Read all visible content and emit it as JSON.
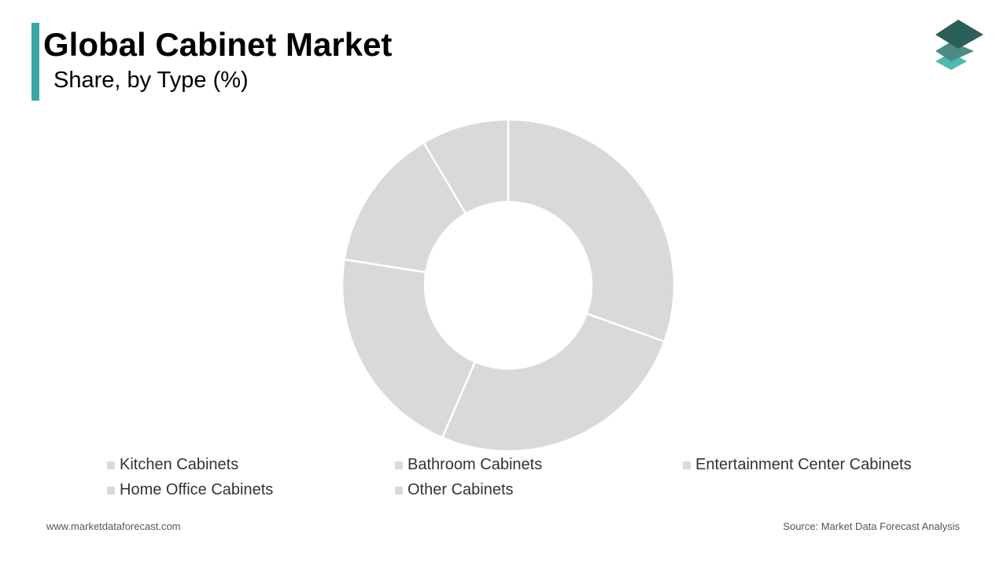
{
  "header": {
    "title": "Global Cabinet Market",
    "subtitle": "Share, by Type (%)"
  },
  "footer": {
    "website": "www.marketdataforecast.com",
    "source": "Source: Market Data Forecast Analysis"
  },
  "colors": {
    "accent": "#3aa8a5",
    "slice": "#d9d9d9",
    "separator": "#ffffff",
    "logo_top": "#2c5f5a",
    "logo_mid": "#4d8a83",
    "logo_bottom": "#4bbab1"
  },
  "icons": {
    "logo": "stacked-layers-icon"
  },
  "chart_data": {
    "type": "pie",
    "style": "donut",
    "categories": [
      "Kitchen Cabinets",
      "Bathroom Cabinets",
      "Entertainment Center Cabinets",
      "Home Office Cabinets",
      "Other Cabinets"
    ],
    "values": [
      30.5,
      26.0,
      21.0,
      14.0,
      8.5
    ],
    "legend_position": "bottom"
  }
}
